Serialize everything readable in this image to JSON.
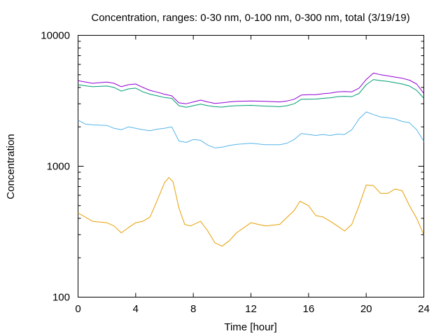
{
  "chart_data": {
    "type": "line",
    "title": "Concentration, ranges: 0-30 nm, 0-100 nm, 0-300 nm, total (3/19/19)",
    "xlabel": "Time [hour]",
    "ylabel": "Concentration",
    "xlim": [
      0,
      24
    ],
    "ylim": [
      100,
      10000
    ],
    "yscale": "log",
    "grid": false,
    "xticks": [
      0,
      4,
      8,
      12,
      16,
      20,
      24
    ],
    "xtick_labels": [
      "0",
      "4",
      "8",
      "12",
      "16",
      "20",
      "24"
    ],
    "yticks": [
      100,
      1000,
      10000
    ],
    "ytick_labels": [
      "100",
      "1000",
      "10000"
    ],
    "series": [
      {
        "color": "#e69f00",
        "x": [
          0,
          1,
          2,
          2.5,
          3,
          3.5,
          4,
          4.5,
          5,
          5.5,
          6,
          6.3,
          6.6,
          7,
          7.4,
          7.8,
          8.5,
          9,
          9.5,
          10,
          10.5,
          11,
          12,
          13,
          14,
          15,
          15.4,
          16,
          16.5,
          17,
          17.5,
          18,
          18.5,
          19,
          19.5,
          20,
          20.5,
          21,
          21.5,
          22,
          22.5,
          23,
          23.5,
          24
        ],
        "y": [
          440,
          380,
          370,
          350,
          310,
          340,
          370,
          380,
          410,
          550,
          750,
          820,
          760,
          480,
          360,
          350,
          380,
          320,
          260,
          245,
          270,
          310,
          370,
          350,
          360,
          460,
          540,
          500,
          420,
          410,
          380,
          350,
          320,
          360,
          500,
          720,
          710,
          620,
          620,
          670,
          650,
          500,
          400,
          300
        ]
      },
      {
        "color": "#56b4e9",
        "x": [
          0,
          0.5,
          1,
          2,
          2.5,
          3,
          3.5,
          4,
          4.5,
          5,
          5.5,
          6,
          6.5,
          7,
          7.5,
          8,
          8.5,
          9,
          9.5,
          10,
          10.5,
          11,
          12,
          13,
          14,
          14.5,
          15,
          15.5,
          16,
          16.5,
          17,
          17.5,
          18,
          18.5,
          19,
          19.5,
          20,
          20.5,
          21,
          21.5,
          22,
          22.5,
          23,
          23.5,
          24
        ],
        "y": [
          2250,
          2100,
          2070,
          2050,
          1950,
          1900,
          2000,
          1950,
          1900,
          1870,
          1920,
          1950,
          2000,
          1560,
          1520,
          1600,
          1580,
          1450,
          1380,
          1400,
          1440,
          1470,
          1500,
          1460,
          1460,
          1500,
          1600,
          1780,
          1750,
          1720,
          1750,
          1720,
          1760,
          1750,
          1900,
          2300,
          2600,
          2480,
          2380,
          2350,
          2300,
          2200,
          2150,
          1900,
          1550
        ]
      },
      {
        "color": "#009e73",
        "x": [
          0,
          1,
          2,
          2.5,
          3,
          3.5,
          4,
          4.5,
          5,
          5.5,
          6,
          6.5,
          7,
          7.5,
          8,
          8.5,
          9,
          9.5,
          10,
          10.5,
          11,
          12,
          13,
          14,
          14.5,
          15,
          15.5,
          16,
          16.5,
          17,
          17.5,
          18,
          18.5,
          19,
          19.5,
          20,
          20.5,
          21,
          21.5,
          22,
          22.5,
          23,
          23.5,
          24
        ],
        "y": [
          4200,
          4050,
          4100,
          4000,
          3750,
          3900,
          3950,
          3700,
          3550,
          3450,
          3350,
          3300,
          2900,
          2820,
          2900,
          2980,
          2900,
          2850,
          2830,
          2880,
          2900,
          2920,
          2880,
          2850,
          2900,
          3000,
          3250,
          3250,
          3260,
          3300,
          3330,
          3400,
          3420,
          3400,
          3600,
          4200,
          4600,
          4500,
          4450,
          4350,
          4250,
          4100,
          3800,
          3300
        ]
      },
      {
        "color": "#9400d3",
        "x": [
          0,
          1,
          2,
          2.5,
          3,
          3.5,
          4,
          4.5,
          5,
          5.5,
          6,
          6.5,
          7,
          7.5,
          8,
          8.5,
          9,
          9.5,
          10,
          10.5,
          11,
          12,
          13,
          14,
          14.5,
          15,
          15.5,
          16,
          16.5,
          17,
          17.5,
          18,
          18.5,
          19,
          19.5,
          20,
          20.5,
          21,
          21.5,
          22,
          22.5,
          23,
          23.5,
          24
        ],
        "y": [
          4500,
          4300,
          4400,
          4300,
          4050,
          4200,
          4250,
          4000,
          3800,
          3680,
          3550,
          3450,
          3050,
          3000,
          3100,
          3200,
          3100,
          3020,
          3050,
          3100,
          3130,
          3150,
          3130,
          3100,
          3150,
          3250,
          3500,
          3520,
          3520,
          3580,
          3620,
          3700,
          3720,
          3700,
          3950,
          4600,
          5150,
          5000,
          4900,
          4800,
          4700,
          4550,
          4250,
          3600
        ]
      }
    ]
  }
}
